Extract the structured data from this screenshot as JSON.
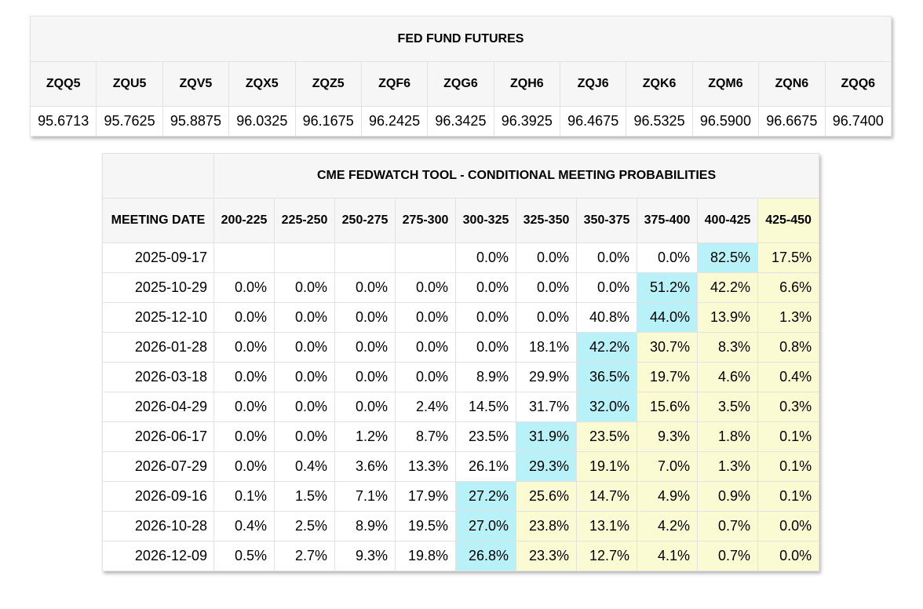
{
  "futures": {
    "title": "FED FUND FUTURES",
    "contracts": [
      "ZQQ5",
      "ZQU5",
      "ZQV5",
      "ZQX5",
      "ZQZ5",
      "ZQF6",
      "ZQG6",
      "ZQH6",
      "ZQJ6",
      "ZQK6",
      "ZQM6",
      "ZQN6",
      "ZQQ6"
    ],
    "prices": [
      "95.6713",
      "95.7625",
      "95.8875",
      "96.0325",
      "96.1675",
      "96.2425",
      "96.3425",
      "96.3925",
      "96.4675",
      "96.5325",
      "96.5900",
      "96.6675",
      "96.7400"
    ]
  },
  "probabilities": {
    "title": "CME FEDWATCH TOOL - CONDITIONAL MEETING PROBABILITIES",
    "date_header": "MEETING DATE",
    "ranges": [
      "200-225",
      "225-250",
      "250-275",
      "275-300",
      "300-325",
      "325-350",
      "350-375",
      "375-400",
      "400-425",
      "425-450"
    ],
    "highlight_colors": {
      "max": "#b8f2f8",
      "current_range": "#fbfbd3"
    },
    "rows": [
      {
        "date": "2025-09-17",
        "values": [
          "",
          "",
          "",
          "",
          "0.0%",
          "0.0%",
          "0.0%",
          "0.0%",
          "82.5%",
          "17.5%"
        ],
        "max_index": 8
      },
      {
        "date": "2025-10-29",
        "values": [
          "0.0%",
          "0.0%",
          "0.0%",
          "0.0%",
          "0.0%",
          "0.0%",
          "0.0%",
          "51.2%",
          "42.2%",
          "6.6%"
        ],
        "max_index": 7
      },
      {
        "date": "2025-12-10",
        "values": [
          "0.0%",
          "0.0%",
          "0.0%",
          "0.0%",
          "0.0%",
          "0.0%",
          "40.8%",
          "44.0%",
          "13.9%",
          "1.3%"
        ],
        "max_index": 7
      },
      {
        "date": "2026-01-28",
        "values": [
          "0.0%",
          "0.0%",
          "0.0%",
          "0.0%",
          "0.0%",
          "18.1%",
          "42.2%",
          "30.7%",
          "8.3%",
          "0.8%"
        ],
        "max_index": 6
      },
      {
        "date": "2026-03-18",
        "values": [
          "0.0%",
          "0.0%",
          "0.0%",
          "0.0%",
          "8.9%",
          "29.9%",
          "36.5%",
          "19.7%",
          "4.6%",
          "0.4%"
        ],
        "max_index": 6
      },
      {
        "date": "2026-04-29",
        "values": [
          "0.0%",
          "0.0%",
          "0.0%",
          "2.4%",
          "14.5%",
          "31.7%",
          "32.0%",
          "15.6%",
          "3.5%",
          "0.3%"
        ],
        "max_index": 6
      },
      {
        "date": "2026-06-17",
        "values": [
          "0.0%",
          "0.0%",
          "1.2%",
          "8.7%",
          "23.5%",
          "31.9%",
          "23.5%",
          "9.3%",
          "1.8%",
          "0.1%"
        ],
        "max_index": 5
      },
      {
        "date": "2026-07-29",
        "values": [
          "0.0%",
          "0.4%",
          "3.6%",
          "13.3%",
          "26.1%",
          "29.3%",
          "19.1%",
          "7.0%",
          "1.3%",
          "0.1%"
        ],
        "max_index": 5
      },
      {
        "date": "2026-09-16",
        "values": [
          "0.1%",
          "1.5%",
          "7.1%",
          "17.9%",
          "27.2%",
          "25.6%",
          "14.7%",
          "4.9%",
          "0.9%",
          "0.1%"
        ],
        "max_index": 4
      },
      {
        "date": "2026-10-28",
        "values": [
          "0.4%",
          "2.5%",
          "8.9%",
          "19.5%",
          "27.0%",
          "23.8%",
          "13.1%",
          "4.2%",
          "0.7%",
          "0.0%"
        ],
        "max_index": 4
      },
      {
        "date": "2026-12-09",
        "values": [
          "0.5%",
          "2.7%",
          "9.3%",
          "19.8%",
          "26.8%",
          "23.3%",
          "12.7%",
          "4.1%",
          "0.7%",
          "0.0%"
        ],
        "max_index": 4
      }
    ]
  }
}
